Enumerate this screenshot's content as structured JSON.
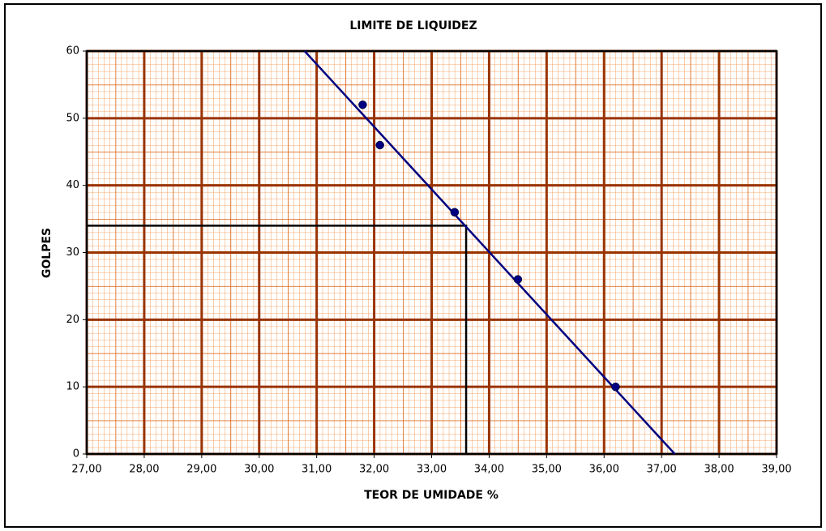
{
  "chart_data": {
    "type": "scatter",
    "title": "LIMITE DE LIQUIDEZ",
    "x_label": "TEOR DE UMIDADE %",
    "y_label": "GOLPES",
    "x": [
      31.8,
      32.1,
      33.4,
      34.5,
      36.2
    ],
    "values": [
      52,
      46,
      36,
      26,
      10
    ],
    "color": "#000080",
    "trendline": {
      "x": [
        30.79,
        37.23
      ],
      "y": [
        60,
        0
      ],
      "color": "#000080"
    },
    "reference": {
      "x": [
        27,
        33.6,
        33.6
      ],
      "y": [
        34,
        34,
        0
      ],
      "color": "#000000"
    },
    "xlim": [
      27,
      39
    ],
    "xticks": [
      {
        "value": 27,
        "label": "27,00"
      },
      {
        "value": 28,
        "label": "28,00"
      },
      {
        "value": 29,
        "label": "29,00"
      },
      {
        "value": 30,
        "label": "30,00"
      },
      {
        "value": 31,
        "label": "31,00"
      },
      {
        "value": 32,
        "label": "32,00"
      },
      {
        "value": 33,
        "label": "33,00"
      },
      {
        "value": 34,
        "label": "34,00"
      },
      {
        "value": 35,
        "label": "35,00"
      },
      {
        "value": 36,
        "label": "36,00"
      },
      {
        "value": 37,
        "label": "37,00"
      },
      {
        "value": 38,
        "label": "38,00"
      },
      {
        "value": 39,
        "label": "39,00"
      }
    ],
    "ylim": [
      0,
      60
    ],
    "yticks": [
      0,
      10,
      20,
      30,
      40,
      50,
      60
    ],
    "grid": true
  }
}
